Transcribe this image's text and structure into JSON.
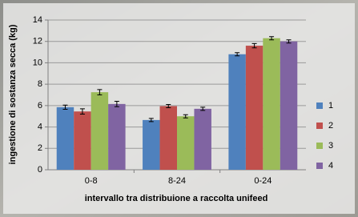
{
  "chart_data": {
    "type": "bar",
    "categories": [
      "0-8",
      "8-24",
      "0-24"
    ],
    "series": [
      {
        "name": "1",
        "color": "#4f81bd",
        "values": [
          5.85,
          4.65,
          10.8
        ],
        "errors": [
          0.2,
          0.15,
          0.15
        ]
      },
      {
        "name": "2",
        "color": "#c0504d",
        "values": [
          5.45,
          5.95,
          11.6
        ],
        "errors": [
          0.25,
          0.15,
          0.2
        ]
      },
      {
        "name": "3",
        "color": "#9bbb59",
        "values": [
          7.25,
          5.0,
          12.3
        ],
        "errors": [
          0.25,
          0.15,
          0.15
        ]
      },
      {
        "name": "4",
        "color": "#8064a2",
        "values": [
          6.15,
          5.7,
          12.0
        ],
        "errors": [
          0.25,
          0.15,
          0.15
        ]
      }
    ],
    "y_label": "ingestione di sostanza secca (kg)",
    "x_label": "intervallo tra distribuione a raccolta unifeed",
    "ylim": [
      0,
      14
    ],
    "yticks": [
      0,
      2,
      4,
      6,
      8,
      10,
      12,
      14
    ],
    "grid": true,
    "legend": "right"
  }
}
